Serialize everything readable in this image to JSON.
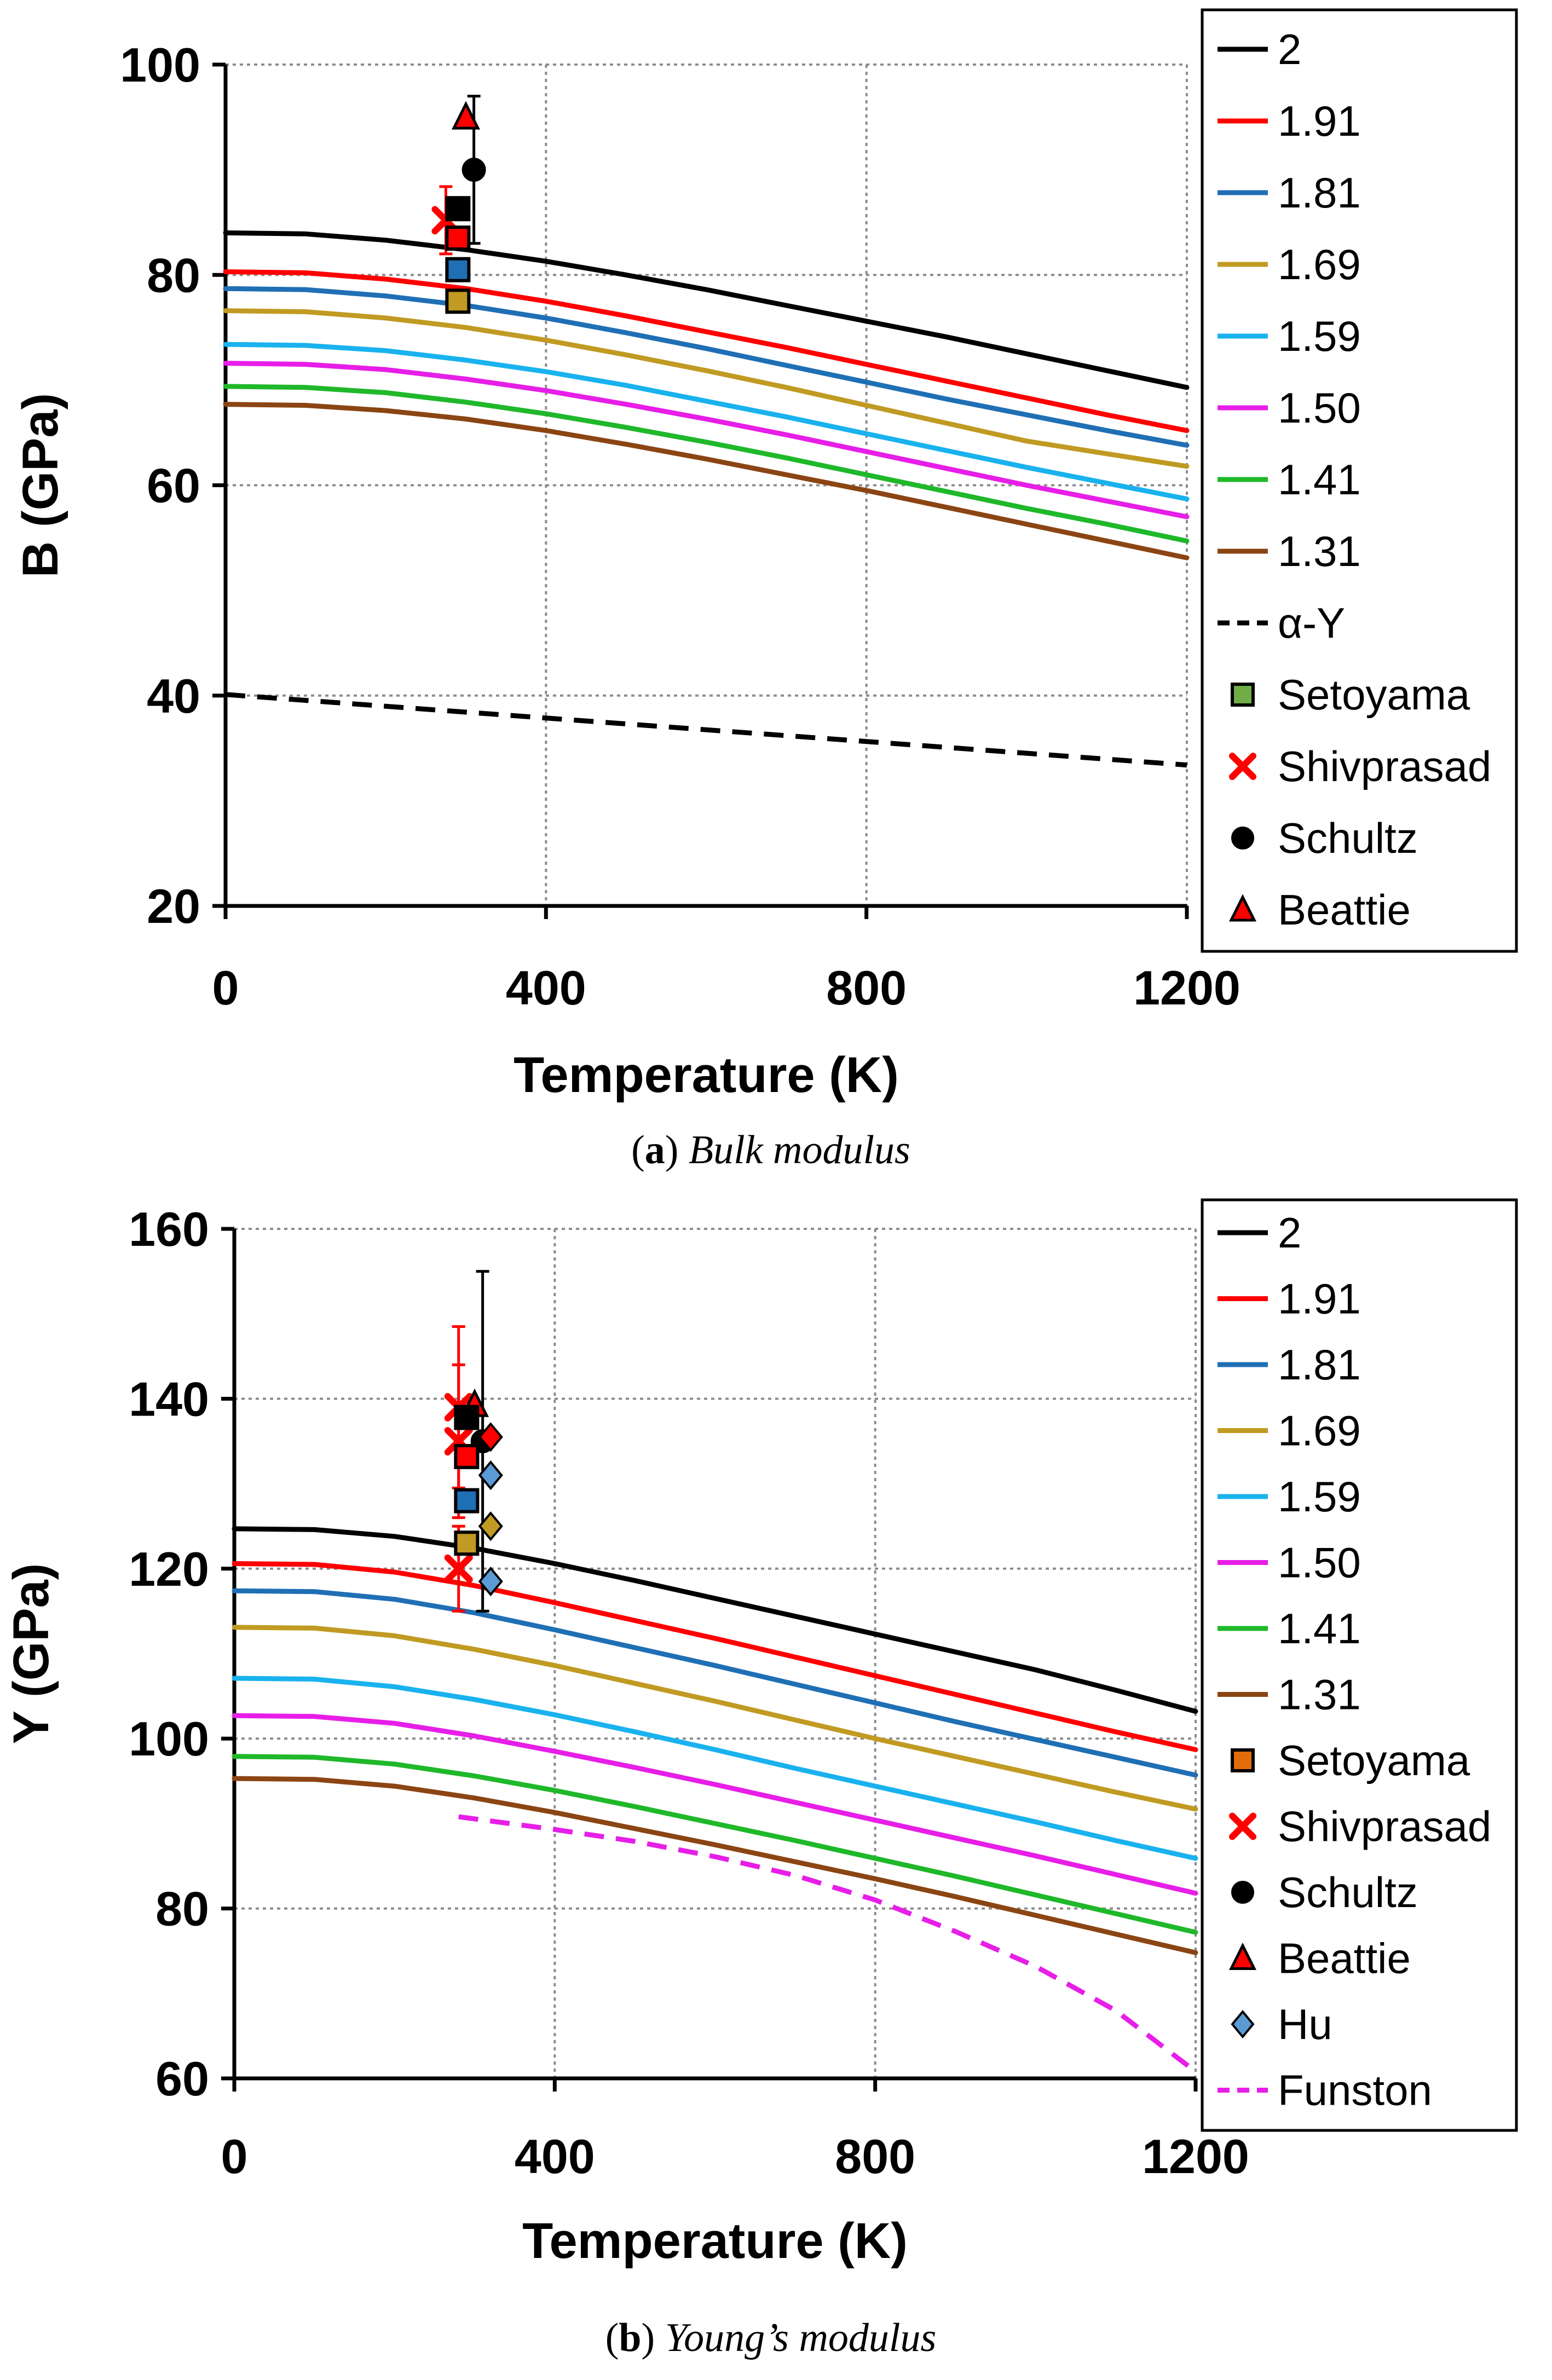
{
  "chart_data": [
    {
      "type": "line",
      "title": "",
      "caption": {
        "prefix": "(",
        "letter": "a",
        "suffix": ") ",
        "text": "Bulk modulus"
      },
      "xlabel": "Temperature (K)",
      "ylabel": "B (GPa)",
      "xlim": [
        0,
        1200
      ],
      "ylim": [
        20,
        100
      ],
      "xticks": [
        0,
        400,
        800,
        1200
      ],
      "yticks": [
        20,
        40,
        60,
        80,
        100
      ],
      "grid": "dotted major gridlines",
      "legend_position": "right",
      "series": [
        {
          "name": "2",
          "color": "#000000",
          "dash": "solid",
          "x": [
            0,
            100,
            200,
            300,
            400,
            500,
            600,
            700,
            800,
            900,
            1000,
            1100,
            1200
          ],
          "values": [
            84.0,
            83.9,
            83.3,
            82.4,
            81.3,
            80.0,
            78.6,
            77.1,
            75.6,
            74.1,
            72.5,
            70.9,
            69.3
          ]
        },
        {
          "name": "1.91",
          "color": "#ff0000",
          "dash": "solid",
          "x": [
            0,
            100,
            200,
            300,
            400,
            500,
            600,
            700,
            800,
            900,
            1000,
            1100,
            1200
          ],
          "values": [
            80.3,
            80.2,
            79.6,
            78.7,
            77.5,
            76.1,
            74.6,
            73.1,
            71.5,
            69.9,
            68.3,
            66.7,
            65.2
          ]
        },
        {
          "name": "1.81",
          "color": "#1f6fb5",
          "dash": "solid",
          "x": [
            0,
            100,
            200,
            300,
            400,
            500,
            600,
            700,
            800,
            900,
            1000,
            1100,
            1200
          ],
          "values": [
            78.7,
            78.6,
            78.0,
            77.1,
            75.9,
            74.5,
            73.0,
            71.4,
            69.8,
            68.2,
            66.7,
            65.2,
            63.8
          ]
        },
        {
          "name": "1.69",
          "color": "#c09a22",
          "dash": "solid",
          "x": [
            0,
            100,
            200,
            300,
            400,
            500,
            600,
            700,
            800,
            900,
            1000,
            1100,
            1200
          ],
          "values": [
            76.6,
            76.5,
            75.9,
            75.0,
            73.8,
            72.4,
            70.9,
            69.3,
            67.6,
            65.9,
            64.2,
            63.0,
            61.8
          ]
        },
        {
          "name": "1.59",
          "color": "#19b2ee",
          "dash": "solid",
          "x": [
            0,
            100,
            200,
            300,
            400,
            500,
            600,
            700,
            800,
            900,
            1000,
            1100,
            1200
          ],
          "values": [
            73.4,
            73.3,
            72.8,
            71.9,
            70.8,
            69.5,
            68.0,
            66.5,
            64.9,
            63.3,
            61.7,
            60.2,
            58.7
          ]
        },
        {
          "name": "1.50",
          "color": "#e71ee7",
          "dash": "solid",
          "x": [
            0,
            100,
            200,
            300,
            400,
            500,
            600,
            700,
            800,
            900,
            1000,
            1100,
            1200
          ],
          "values": [
            71.6,
            71.5,
            71.0,
            70.1,
            69.0,
            67.7,
            66.3,
            64.8,
            63.2,
            61.6,
            60.0,
            58.5,
            57.0
          ]
        },
        {
          "name": "1.41",
          "color": "#1fb82a",
          "dash": "solid",
          "x": [
            0,
            100,
            200,
            300,
            400,
            500,
            600,
            700,
            800,
            900,
            1000,
            1100,
            1200
          ],
          "values": [
            69.4,
            69.3,
            68.8,
            67.9,
            66.8,
            65.5,
            64.1,
            62.6,
            61.0,
            59.4,
            57.8,
            56.3,
            54.7
          ]
        },
        {
          "name": "1.31",
          "color": "#8b4513",
          "dash": "solid",
          "x": [
            0,
            100,
            200,
            300,
            400,
            500,
            600,
            700,
            800,
            900,
            1000,
            1100,
            1200
          ],
          "values": [
            67.7,
            67.6,
            67.1,
            66.3,
            65.2,
            63.9,
            62.5,
            61.0,
            59.5,
            57.9,
            56.3,
            54.7,
            53.1
          ]
        },
        {
          "name": "α-Y",
          "color": "#000000",
          "dash": "dashed",
          "x": [
            0,
            1200
          ],
          "values": [
            40.1,
            33.4
          ]
        }
      ],
      "markers": [
        {
          "name": "Setoyama",
          "shape": "square",
          "fill": "#70ad47",
          "legend": true,
          "points": []
        },
        {
          "name": "Shivprasad",
          "shape": "x",
          "fill": "#ff0000",
          "legend": true,
          "points": [
            {
              "x": 275,
              "y": 85.2,
              "err": 3.2
            }
          ]
        },
        {
          "name": "Schultz",
          "shape": "circle",
          "fill": "#000000",
          "legend": true,
          "points": [
            {
              "x": 310,
              "y": 90.0,
              "err": 7.0
            }
          ]
        },
        {
          "name": "Beattie",
          "shape": "triangle",
          "fill": "#ff0000",
          "legend": true,
          "points": [
            {
              "x": 300,
              "y": 95.0
            }
          ]
        },
        {
          "name": "",
          "shape": "square",
          "fill": "#000000",
          "legend": false,
          "points": [
            {
              "x": 290,
              "y": 86.3
            }
          ]
        },
        {
          "name": "",
          "shape": "square",
          "fill": "#ff0000",
          "legend": false,
          "points": [
            {
              "x": 290,
              "y": 83.5
            }
          ]
        },
        {
          "name": "",
          "shape": "square",
          "fill": "#1f6fb5",
          "legend": false,
          "points": [
            {
              "x": 290,
              "y": 80.5
            }
          ]
        },
        {
          "name": "",
          "shape": "square",
          "fill": "#c09a22",
          "legend": false,
          "points": [
            {
              "x": 290,
              "y": 77.5
            }
          ]
        }
      ]
    },
    {
      "type": "line",
      "title": "",
      "caption": {
        "prefix": "(",
        "letter": "b",
        "suffix": ") ",
        "text": "Young’s modulus"
      },
      "xlabel": "Temperature (K)",
      "ylabel": "Y (GPa)",
      "xlim": [
        0,
        1200
      ],
      "ylim": [
        60,
        160
      ],
      "xticks": [
        0,
        400,
        800,
        1200
      ],
      "yticks": [
        60,
        80,
        100,
        120,
        140,
        160
      ],
      "grid": "dotted major gridlines",
      "legend_position": "right",
      "series": [
        {
          "name": "2",
          "color": "#000000",
          "dash": "solid",
          "x": [
            0,
            100,
            200,
            300,
            400,
            500,
            600,
            700,
            800,
            900,
            1000,
            1100,
            1200
          ],
          "values": [
            124.7,
            124.6,
            123.8,
            122.4,
            120.6,
            118.6,
            116.5,
            114.4,
            112.3,
            110.2,
            108.1,
            105.7,
            103.2
          ]
        },
        {
          "name": "1.91",
          "color": "#ff0000",
          "dash": "solid",
          "x": [
            0,
            100,
            200,
            300,
            400,
            500,
            600,
            700,
            800,
            900,
            1000,
            1100,
            1200
          ],
          "values": [
            120.6,
            120.5,
            119.6,
            118.0,
            116.0,
            113.9,
            111.8,
            109.6,
            107.4,
            105.2,
            103.0,
            100.8,
            98.7
          ]
        },
        {
          "name": "1.81",
          "color": "#1f6fb5",
          "dash": "solid",
          "x": [
            0,
            100,
            200,
            300,
            400,
            500,
            600,
            700,
            800,
            900,
            1000,
            1100,
            1200
          ],
          "values": [
            117.4,
            117.3,
            116.4,
            114.8,
            112.8,
            110.7,
            108.6,
            106.4,
            104.2,
            102.0,
            99.9,
            97.8,
            95.7
          ]
        },
        {
          "name": "1.69",
          "color": "#c09a22",
          "dash": "solid",
          "x": [
            0,
            100,
            200,
            300,
            400,
            500,
            600,
            700,
            800,
            900,
            1000,
            1100,
            1200
          ],
          "values": [
            113.1,
            113.0,
            112.1,
            110.5,
            108.6,
            106.5,
            104.4,
            102.2,
            100.0,
            97.9,
            95.8,
            93.7,
            91.7
          ]
        },
        {
          "name": "1.59",
          "color": "#19b2ee",
          "dash": "solid",
          "x": [
            0,
            100,
            200,
            300,
            400,
            500,
            600,
            700,
            800,
            900,
            1000,
            1100,
            1200
          ],
          "values": [
            107.1,
            107.0,
            106.1,
            104.6,
            102.8,
            100.8,
            98.7,
            96.5,
            94.4,
            92.3,
            90.2,
            88.0,
            85.9
          ]
        },
        {
          "name": "1.50",
          "color": "#e71ee7",
          "dash": "solid",
          "x": [
            0,
            100,
            200,
            300,
            400,
            500,
            600,
            700,
            800,
            900,
            1000,
            1100,
            1200
          ],
          "values": [
            102.7,
            102.6,
            101.8,
            100.3,
            98.5,
            96.6,
            94.6,
            92.5,
            90.4,
            88.3,
            86.2,
            84.0,
            81.8
          ]
        },
        {
          "name": "1.41",
          "color": "#1fb82a",
          "dash": "solid",
          "x": [
            0,
            100,
            200,
            300,
            400,
            500,
            600,
            700,
            800,
            900,
            1000,
            1100,
            1200
          ],
          "values": [
            97.9,
            97.8,
            97.0,
            95.6,
            93.9,
            92.0,
            90.0,
            88.0,
            85.9,
            83.8,
            81.6,
            79.4,
            77.2
          ]
        },
        {
          "name": "1.31",
          "color": "#8b4513",
          "dash": "solid",
          "x": [
            0,
            100,
            200,
            300,
            400,
            500,
            600,
            700,
            800,
            900,
            1000,
            1100,
            1200
          ],
          "values": [
            95.3,
            95.2,
            94.4,
            93.0,
            91.3,
            89.4,
            87.5,
            85.5,
            83.5,
            81.4,
            79.2,
            77.0,
            74.8
          ]
        },
        {
          "name": "Funston",
          "color": "#e71ee7",
          "dash": "dashed",
          "x": [
            280,
            400,
            500,
            600,
            700,
            800,
            900,
            1000,
            1100,
            1200
          ],
          "values": [
            90.8,
            89.3,
            87.9,
            86.1,
            83.9,
            81.0,
            77.3,
            73.2,
            68.0,
            60.8
          ]
        }
      ],
      "markers": [
        {
          "name": "Setoyama",
          "shape": "square",
          "fill": "#e36c0a",
          "legend": true,
          "points": []
        },
        {
          "name": "Shivprasad",
          "shape": "x",
          "fill": "#ff0000",
          "legend": true,
          "points": [
            {
              "x": 280,
              "y": 139.0,
              "err": 9.5
            },
            {
              "x": 280,
              "y": 135.0,
              "err": 9.0
            },
            {
              "x": 280,
              "y": 120.0,
              "err": 5.0
            }
          ]
        },
        {
          "name": "Schultz",
          "shape": "circle",
          "fill": "#000000",
          "legend": true,
          "points": [
            {
              "x": 310,
              "y": 135.0,
              "err": 20.0
            }
          ]
        },
        {
          "name": "Beattie",
          "shape": "triangle",
          "fill": "#ff0000",
          "legend": true,
          "points": [
            {
              "x": 300,
              "y": 139.3
            }
          ]
        },
        {
          "name": "Hu",
          "shape": "diamond",
          "fill": "#5b9bd5",
          "legend": true,
          "points": [
            {
              "x": 320,
              "y": 131.0
            },
            {
              "x": 320,
              "y": 118.5
            }
          ]
        },
        {
          "name": "",
          "shape": "square",
          "fill": "#000000",
          "legend": false,
          "points": [
            {
              "x": 290,
              "y": 137.8
            }
          ]
        },
        {
          "name": "",
          "shape": "square",
          "fill": "#ff0000",
          "legend": false,
          "points": [
            {
              "x": 290,
              "y": 133.2
            }
          ]
        },
        {
          "name": "",
          "shape": "square",
          "fill": "#1f6fb5",
          "legend": false,
          "points": [
            {
              "x": 290,
              "y": 128.0
            }
          ]
        },
        {
          "name": "",
          "shape": "square",
          "fill": "#c09a22",
          "legend": false,
          "points": [
            {
              "x": 290,
              "y": 123.0
            }
          ]
        },
        {
          "name": "",
          "shape": "diamond",
          "fill": "#ff0000",
          "legend": false,
          "points": [
            {
              "x": 320,
              "y": 135.5
            }
          ]
        },
        {
          "name": "",
          "shape": "diamond",
          "fill": "#c09a22",
          "legend": false,
          "points": [
            {
              "x": 320,
              "y": 125.0
            }
          ]
        }
      ],
      "legend_order": [
        "2",
        "1.91",
        "1.81",
        "1.69",
        "1.59",
        "1.50",
        "1.41",
        "1.31",
        "Setoyama",
        "Shivprasad",
        "Schultz",
        "Beattie",
        "Hu",
        "Funston"
      ]
    }
  ]
}
